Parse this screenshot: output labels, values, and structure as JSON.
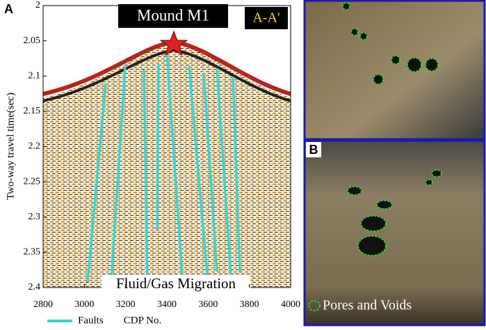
{
  "chart_data": {
    "type": "seismic-section",
    "panel_label": "A",
    "title": "Mound M1",
    "section_label": "A-A'",
    "annotation": "Fluid/Gas Migration",
    "ylabel": "Two-way travel time(sec)",
    "xlabel": "CDP No.",
    "legend": "Faults",
    "fault_color": "#33d6d6",
    "xlim": [
      2800,
      4000
    ],
    "xticks": [
      2800,
      3000,
      3200,
      3400,
      3600,
      3800,
      4000
    ],
    "ylim": [
      2,
      2.4
    ],
    "yticks": [
      2,
      2.05,
      2.1,
      2.15,
      2.2,
      2.25,
      2.3,
      2.35,
      2.4
    ]
  },
  "photos": {
    "panel_label": "B",
    "legend": "Pores and Voids"
  }
}
